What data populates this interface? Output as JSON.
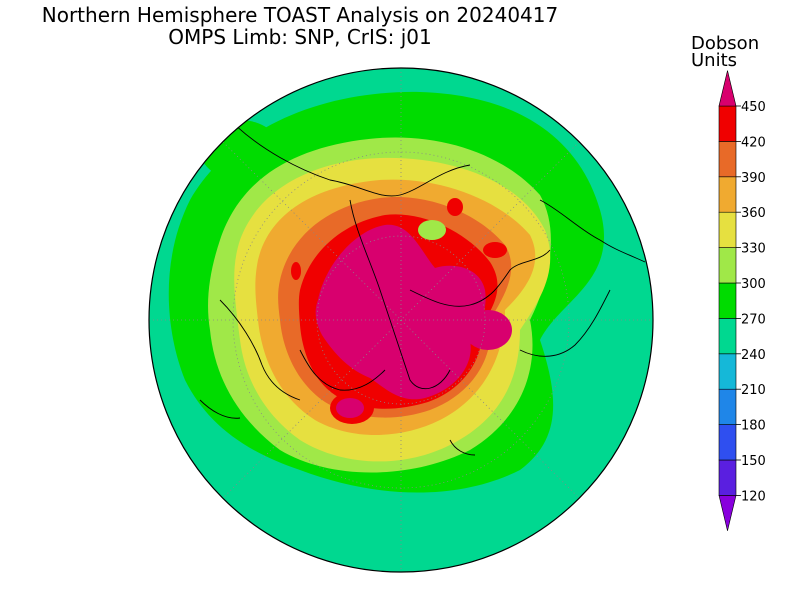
{
  "title": {
    "line1": "Northern Hemisphere TOAST Analysis on 20240417",
    "line2": "OMPS Limb: SNP, CrIS: j01"
  },
  "colorbar": {
    "unit_line1": "Dobson",
    "unit_line2": "Units",
    "levels": [
      "120",
      "150",
      "180",
      "210",
      "240",
      "270",
      "300",
      "330",
      "360",
      "390",
      "420",
      "450"
    ],
    "colors": [
      "#8800dd",
      "#5a1fe0",
      "#2f4ff0",
      "#1f86e8",
      "#15b8d8",
      "#00d890",
      "#00dc00",
      "#a0e848",
      "#e6e040",
      "#f0aa30",
      "#e86a28",
      "#f00000",
      "#d8006e"
    ]
  }
}
